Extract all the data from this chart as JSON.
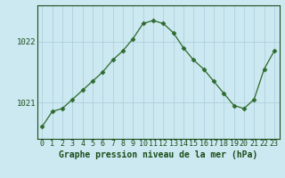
{
  "x": [
    0,
    1,
    2,
    3,
    4,
    5,
    6,
    7,
    8,
    9,
    10,
    11,
    12,
    13,
    14,
    15,
    16,
    17,
    18,
    19,
    20,
    21,
    22,
    23
  ],
  "y": [
    1020.6,
    1020.85,
    1020.9,
    1021.05,
    1021.2,
    1021.35,
    1021.5,
    1021.7,
    1021.85,
    1022.05,
    1022.3,
    1022.35,
    1022.3,
    1022.15,
    1021.9,
    1021.7,
    1021.55,
    1021.35,
    1021.15,
    1020.95,
    1020.9,
    1021.05,
    1021.55,
    1021.85
  ],
  "line_color": "#2d6a2d",
  "marker": "D",
  "marker_size": 2.5,
  "background_color": "#cce8f0",
  "grid_color": "#aaccdd",
  "ylabel_ticks": [
    1021,
    1022
  ],
  "xlabel": "Graphe pression niveau de la mer (hPa)",
  "xlabel_fontsize": 7,
  "ylim": [
    1020.4,
    1022.6
  ],
  "xlim": [
    -0.5,
    23.5
  ],
  "dark_color": "#1a4d1a",
  "tick_label_fontsize": 6,
  "xtick_labels": [
    "0",
    "1",
    "2",
    "3",
    "4",
    "5",
    "6",
    "7",
    "8",
    "9",
    "10",
    "11",
    "12",
    "13",
    "14",
    "15",
    "16",
    "17",
    "18",
    "19",
    "20",
    "21",
    "22",
    "23"
  ]
}
